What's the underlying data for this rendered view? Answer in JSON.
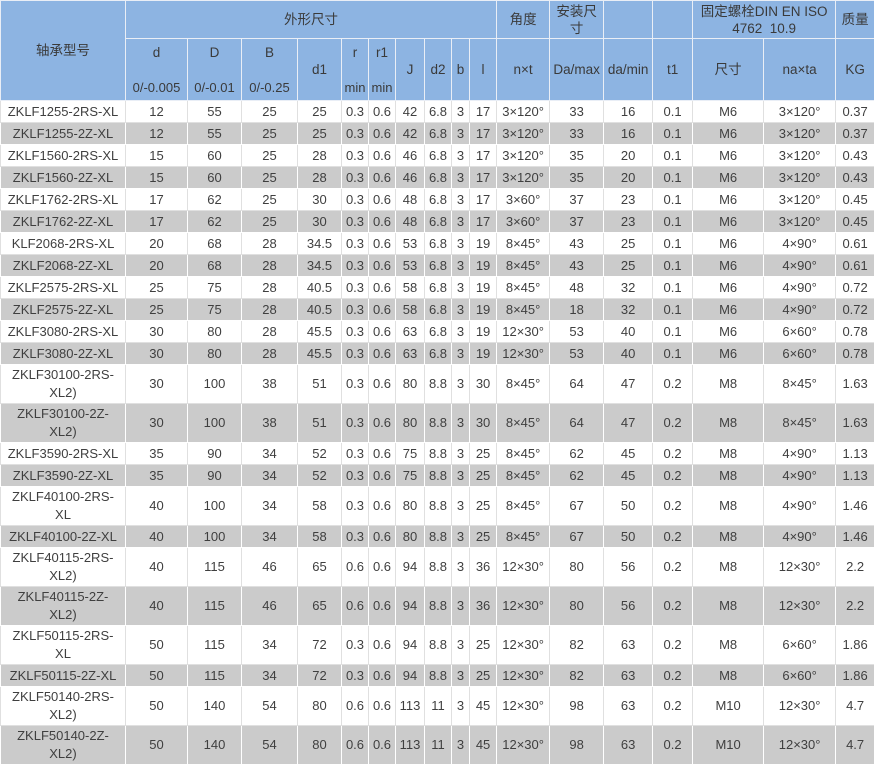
{
  "colors": {
    "header_bg": "#8db4e2",
    "header_border": "#e9eef6",
    "alt_row_bg": "#cbcbcb",
    "row_border": "#e0e0e0",
    "text": "#3f3f3f"
  },
  "table": {
    "header": {
      "model_col": "轴承型号",
      "group_dimensions": "外形尺寸",
      "group_angle": "角度",
      "group_mount": "安装尺寸",
      "group_blank_1": "",
      "group_blank_2": "",
      "group_bolt": "固定螺栓DIN EN ISO 4762  10.9",
      "group_mass": "质量",
      "columns": [
        {
          "label": "d",
          "sub": "0/-0.005"
        },
        {
          "label": "D",
          "sub": "0/-0.01"
        },
        {
          "label": "B",
          "sub": "0/-0.25"
        },
        {
          "label": "d1",
          "sub": ""
        },
        {
          "label": "r",
          "sub": "min"
        },
        {
          "label": "r1",
          "sub": "min"
        },
        {
          "label": "J",
          "sub": ""
        },
        {
          "label": "d2",
          "sub": ""
        },
        {
          "label": "b",
          "sub": ""
        },
        {
          "label": "l",
          "sub": ""
        },
        {
          "label": "n×t",
          "sub": ""
        },
        {
          "label": "Da/max",
          "sub": ""
        },
        {
          "label": "da/min",
          "sub": ""
        },
        {
          "label": "t1",
          "sub": ""
        },
        {
          "label": "尺寸",
          "sub": ""
        },
        {
          "label": "na×ta",
          "sub": ""
        },
        {
          "label": "KG",
          "sub": ""
        }
      ]
    },
    "rows": [
      [
        "ZKLF1255-2RS-XL",
        "12",
        "55",
        "25",
        "25",
        "0.3",
        "0.6",
        "42",
        "6.8",
        "3",
        "17",
        "3×120°",
        "33",
        "16",
        "0.1",
        "M6",
        "3×120°",
        "0.37"
      ],
      [
        "ZKLF1255-2Z-XL",
        "12",
        "55",
        "25",
        "25",
        "0.3",
        "0.6",
        "42",
        "6.8",
        "3",
        "17",
        "3×120°",
        "33",
        "16",
        "0.1",
        "M6",
        "3×120°",
        "0.37"
      ],
      [
        "ZKLF1560-2RS-XL",
        "15",
        "60",
        "25",
        "28",
        "0.3",
        "0.6",
        "46",
        "6.8",
        "3",
        "17",
        "3×120°",
        "35",
        "20",
        "0.1",
        "M6",
        "3×120°",
        "0.43"
      ],
      [
        "ZKLF1560-2Z-XL",
        "15",
        "60",
        "25",
        "28",
        "0.3",
        "0.6",
        "46",
        "6.8",
        "3",
        "17",
        "3×120°",
        "35",
        "20",
        "0.1",
        "M6",
        "3×120°",
        "0.43"
      ],
      [
        "ZKLF1762-2RS-XL",
        "17",
        "62",
        "25",
        "30",
        "0.3",
        "0.6",
        "48",
        "6.8",
        "3",
        "17",
        "3×60°",
        "37",
        "23",
        "0.1",
        "M6",
        "3×120°",
        "0.45"
      ],
      [
        "ZKLF1762-2Z-XL",
        "17",
        "62",
        "25",
        "30",
        "0.3",
        "0.6",
        "48",
        "6.8",
        "3",
        "17",
        "3×60°",
        "37",
        "23",
        "0.1",
        "M6",
        "3×120°",
        "0.45"
      ],
      [
        "KLF2068-2RS-XL",
        "20",
        "68",
        "28",
        "34.5",
        "0.3",
        "0.6",
        "53",
        "6.8",
        "3",
        "19",
        "8×45°",
        "43",
        "25",
        "0.1",
        "M6",
        "4×90°",
        "0.61"
      ],
      [
        "ZKLF2068-2Z-XL",
        "20",
        "68",
        "28",
        "34.5",
        "0.3",
        "0.6",
        "53",
        "6.8",
        "3",
        "19",
        "8×45°",
        "43",
        "25",
        "0.1",
        "M6",
        "4×90°",
        "0.61"
      ],
      [
        "ZKLF2575-2RS-XL",
        "25",
        "75",
        "28",
        "40.5",
        "0.3",
        "0.6",
        "58",
        "6.8",
        "3",
        "19",
        "8×45°",
        "48",
        "32",
        "0.1",
        "M6",
        "4×90°",
        "0.72"
      ],
      [
        "ZKLF2575-2Z-XL",
        "25",
        "75",
        "28",
        "40.5",
        "0.3",
        "0.6",
        "58",
        "6.8",
        "3",
        "19",
        "8×45°",
        "18",
        "32",
        "0.1",
        "M6",
        "4×90°",
        "0.72"
      ],
      [
        "ZKLF3080-2RS-XL",
        "30",
        "80",
        "28",
        "45.5",
        "0.3",
        "0.6",
        "63",
        "6.8",
        "3",
        "19",
        "12×30°",
        "53",
        "40",
        "0.1",
        "M6",
        "6×60°",
        "0.78"
      ],
      [
        "ZKLF3080-2Z-XL",
        "30",
        "80",
        "28",
        "45.5",
        "0.3",
        "0.6",
        "63",
        "6.8",
        "3",
        "19",
        "12×30°",
        "53",
        "40",
        "0.1",
        "M6",
        "6×60°",
        "0.78"
      ],
      [
        "ZKLF30100-2RS-XL2)",
        "30",
        "100",
        "38",
        "51",
        "0.3",
        "0.6",
        "80",
        "8.8",
        "3",
        "30",
        "8×45°",
        "64",
        "47",
        "0.2",
        "M8",
        "8×45°",
        "1.63"
      ],
      [
        "ZKLF30100-2Z-XL2)",
        "30",
        "100",
        "38",
        "51",
        "0.3",
        "0.6",
        "80",
        "8.8",
        "3",
        "30",
        "8×45°",
        "64",
        "47",
        "0.2",
        "M8",
        "8×45°",
        "1.63"
      ],
      [
        "ZKLF3590-2RS-XL",
        "35",
        "90",
        "34",
        "52",
        "0.3",
        "0.6",
        "75",
        "8.8",
        "3",
        "25",
        "8×45°",
        "62",
        "45",
        "0.2",
        "M8",
        "4×90°",
        "1.13"
      ],
      [
        "ZKLF3590-2Z-XL",
        "35",
        "90",
        "34",
        "52",
        "0.3",
        "0.6",
        "75",
        "8.8",
        "3",
        "25",
        "8×45°",
        "62",
        "45",
        "0.2",
        "M8",
        "4×90°",
        "1.13"
      ],
      [
        "ZKLF40100-2RS-XL",
        "40",
        "100",
        "34",
        "58",
        "0.3",
        "0.6",
        "80",
        "8.8",
        "3",
        "25",
        "8×45°",
        "67",
        "50",
        "0.2",
        "M8",
        "4×90°",
        "1.46"
      ],
      [
        "ZKLF40100-2Z-XL",
        "40",
        "100",
        "34",
        "58",
        "0.3",
        "0.6",
        "80",
        "8.8",
        "3",
        "25",
        "8×45°",
        "67",
        "50",
        "0.2",
        "M8",
        "4×90°",
        "1.46"
      ],
      [
        "ZKLF40115-2RS-XL2)",
        "40",
        "115",
        "46",
        "65",
        "0.6",
        "0.6",
        "94",
        "8.8",
        "3",
        "36",
        "12×30°",
        "80",
        "56",
        "0.2",
        "M8",
        "12×30°",
        "2.2"
      ],
      [
        "ZKLF40115-2Z-XL2)",
        "40",
        "115",
        "46",
        "65",
        "0.6",
        "0.6",
        "94",
        "8.8",
        "3",
        "36",
        "12×30°",
        "80",
        "56",
        "0.2",
        "M8",
        "12×30°",
        "2.2"
      ],
      [
        "ZKLF50115-2RS-XL",
        "50",
        "115",
        "34",
        "72",
        "0.3",
        "0.6",
        "94",
        "8.8",
        "3",
        "25",
        "12×30°",
        "82",
        "63",
        "0.2",
        "M8",
        "6×60°",
        "1.86"
      ],
      [
        "ZKLF50115-2Z-XL",
        "50",
        "115",
        "34",
        "72",
        "0.3",
        "0.6",
        "94",
        "8.8",
        "3",
        "25",
        "12×30°",
        "82",
        "63",
        "0.2",
        "M8",
        "6×60°",
        "1.86"
      ],
      [
        "ZKLF50140-2RS-XL2)",
        "50",
        "140",
        "54",
        "80",
        "0.6",
        "0.6",
        "113",
        "11",
        "3",
        "45",
        "12×30°",
        "98",
        "63",
        "0.2",
        "M10",
        "12×30°",
        "4.7"
      ],
      [
        "ZKLF50140-2Z-XL2)",
        "50",
        "140",
        "54",
        "80",
        "0.6",
        "0.6",
        "113",
        "11",
        "3",
        "45",
        "12×30°",
        "98",
        "63",
        "0.2",
        "M10",
        "12×30°",
        "4.7"
      ]
    ]
  }
}
